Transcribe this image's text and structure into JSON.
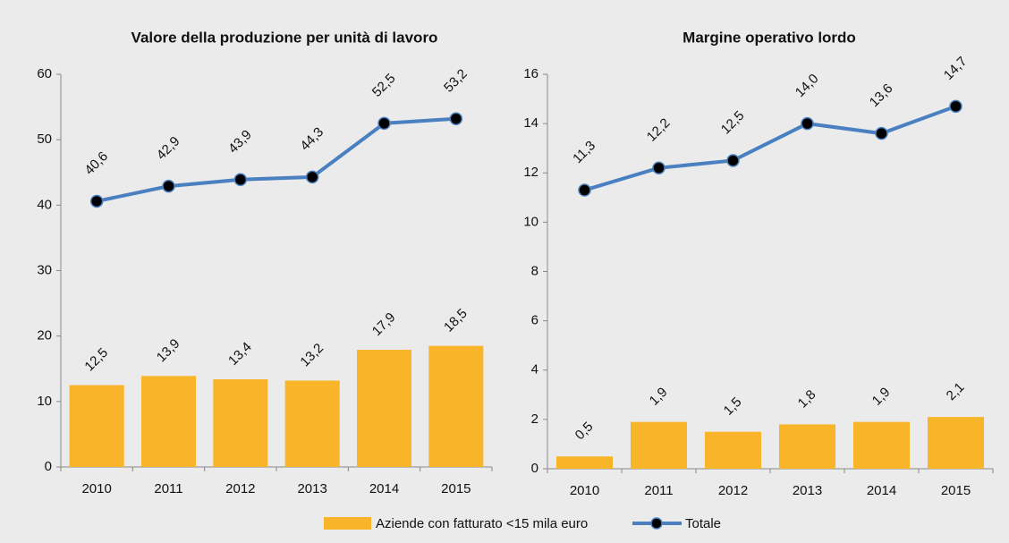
{
  "chart_data": [
    {
      "type": "combo",
      "title": "Valore della produzione per unità di lavoro",
      "categories": [
        "2010",
        "2011",
        "2012",
        "2013",
        "2014",
        "2015"
      ],
      "ylim": [
        0,
        60
      ],
      "yticks": [
        0,
        10,
        20,
        30,
        40,
        50,
        60
      ],
      "series": [
        {
          "kind": "bar",
          "color": "#f9b52a",
          "values": [
            12.5,
            13.9,
            13.4,
            13.2,
            17.9,
            18.5
          ],
          "value_labels": [
            "12,5",
            "13,9",
            "13,4",
            "13,2",
            "17,9",
            "18,5"
          ]
        },
        {
          "kind": "line",
          "color": "#4a80c0",
          "values": [
            40.6,
            42.9,
            43.9,
            44.3,
            52.5,
            53.2
          ],
          "value_labels": [
            "40,6",
            "42,9",
            "43,9",
            "44,3",
            "52,5",
            "53,2"
          ]
        }
      ]
    },
    {
      "type": "combo",
      "title": "Margine operativo lordo",
      "categories": [
        "2010",
        "2011",
        "2012",
        "2013",
        "2014",
        "2015"
      ],
      "ylim": [
        0,
        16
      ],
      "yticks": [
        0,
        2,
        4,
        6,
        8,
        10,
        12,
        14,
        16
      ],
      "series": [
        {
          "kind": "bar",
          "color": "#f9b52a",
          "values": [
            0.5,
            1.9,
            1.5,
            1.8,
            1.9,
            2.1
          ],
          "value_labels": [
            "0,5",
            "1,9",
            "1,5",
            "1,8",
            "1,9",
            "2,1"
          ]
        },
        {
          "kind": "line",
          "color": "#4a80c0",
          "values": [
            11.3,
            12.2,
            12.5,
            14.0,
            13.6,
            14.7
          ],
          "value_labels": [
            "11,3",
            "12,2",
            "12,5",
            "14,0",
            "13,6",
            "14,7"
          ]
        }
      ]
    }
  ],
  "legend": [
    {
      "name": "Aziende con fatturato <15 mila euro",
      "color": "#f9b52a"
    },
    {
      "name": "Totale",
      "color": "#4a80c0"
    }
  ]
}
